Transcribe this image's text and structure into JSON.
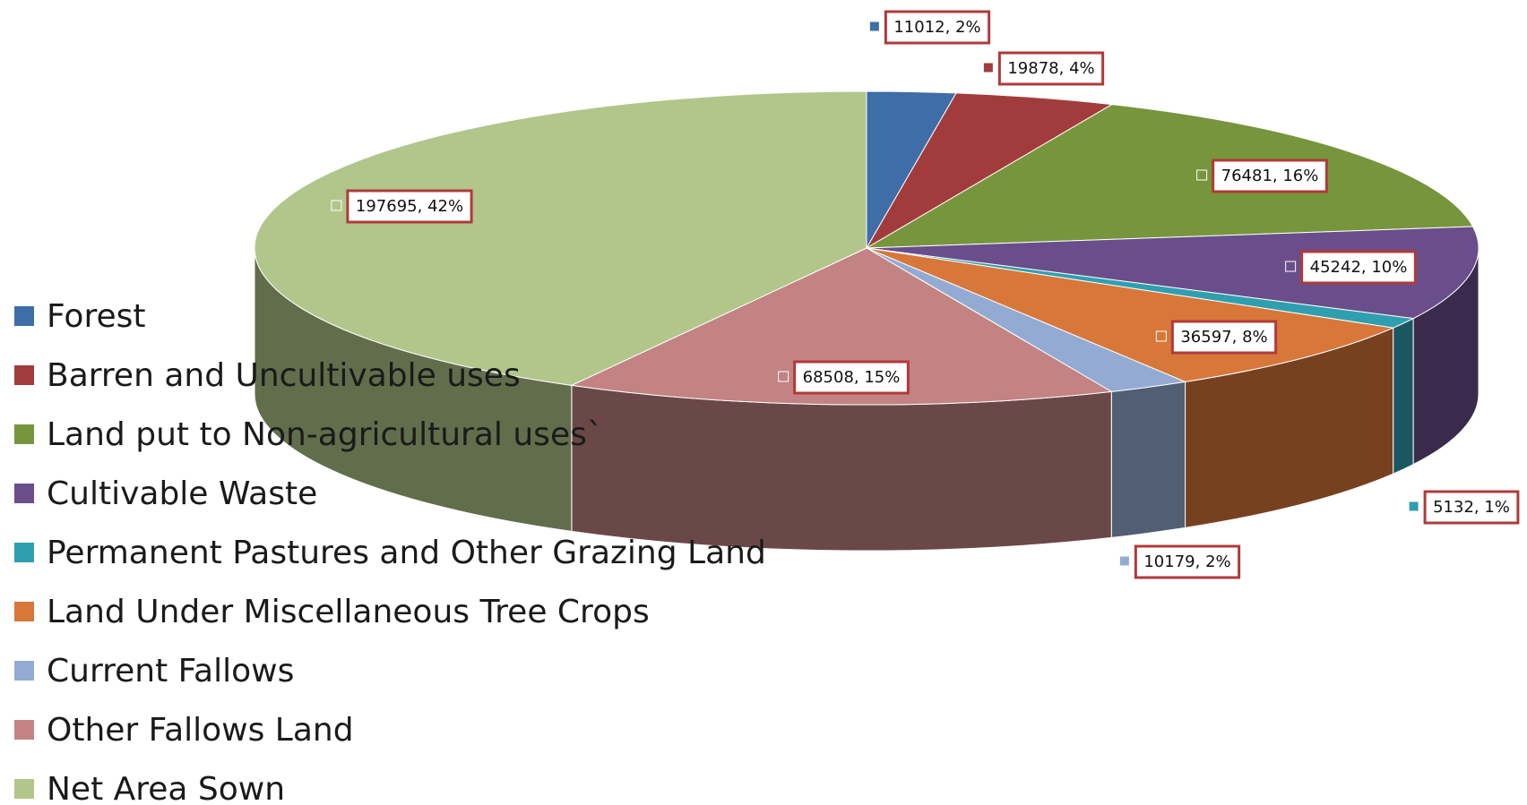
{
  "chart_data": {
    "type": "pie3d",
    "categories": [
      "Forest",
      "Barren and Uncultivable uses",
      "Land put to Non-agricultural uses`",
      "Cultivable Waste",
      "Permanent Pastures and Other Grazing Land",
      "Land Under Miscellaneous Tree Crops",
      "Current Fallows",
      "Other Fallows Land",
      "Net Area Sown"
    ],
    "values": [
      11012,
      19878,
      76481,
      45242,
      5132,
      36597,
      10179,
      68508,
      197695
    ],
    "value_labels": [
      "11012, 2%",
      "19878, 4%",
      "76481, 16%",
      "45242, 10%",
      "5132, 1%",
      "36597, 8%",
      "10179, 2%",
      "68508, 15%",
      "197695, 42%"
    ],
    "colors": [
      "#3e6da8",
      "#a23c3c",
      "#77953c",
      "#6a4e8b",
      "#2f9fb0",
      "#d8773a",
      "#93abd3",
      "#c38383",
      "#b2c68b"
    ],
    "legend": "left"
  }
}
